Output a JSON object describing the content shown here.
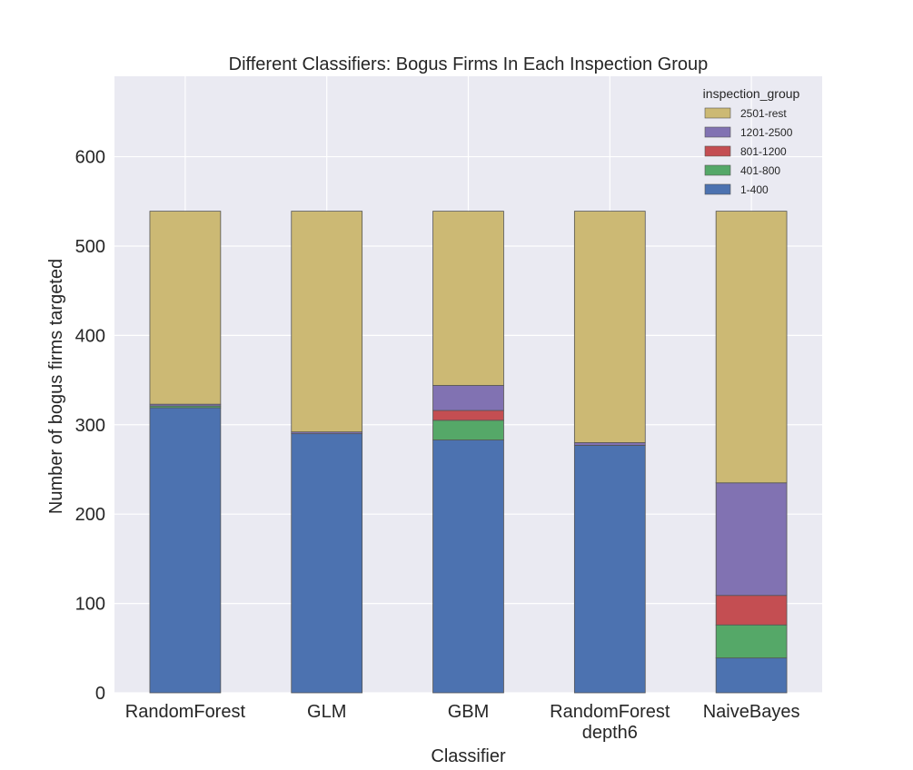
{
  "chart_data": {
    "type": "bar",
    "stacked": true,
    "title": "Different Classifiers: Bogus Firms In Each Inspection Group",
    "xlabel": "Classifier",
    "ylabel": "Number of bogus firms targeted",
    "categories": [
      [
        "RandomForest"
      ],
      [
        "GLM"
      ],
      [
        "GBM"
      ],
      [
        "RandomForest",
        "depth6"
      ],
      [
        "NaiveBayes"
      ]
    ],
    "ylim": [
      0,
      690
    ],
    "yticks": [
      0,
      100,
      200,
      300,
      400,
      500,
      600
    ],
    "grid": true,
    "legend": {
      "title": "inspection_group",
      "placement": "top-right"
    },
    "series": [
      {
        "name": "1-400",
        "color": "#4c72b0",
        "values": [
          319,
          290,
          283,
          277,
          39
        ]
      },
      {
        "name": "401-800",
        "color": "#55a868",
        "values": [
          2,
          0,
          22,
          0,
          37
        ]
      },
      {
        "name": "801-1200",
        "color": "#c44e52",
        "values": [
          0,
          0,
          11,
          0,
          33
        ]
      },
      {
        "name": "1201-2500",
        "color": "#8172b2",
        "values": [
          2,
          2,
          28,
          3,
          126
        ]
      },
      {
        "name": "2501-rest",
        "color": "#ccb974",
        "values": [
          216,
          247,
          195,
          259,
          304
        ]
      }
    ]
  },
  "colors": {
    "plot_background": "#eaeaf2",
    "grid": "#ffffff",
    "bar_edge": "#555555"
  }
}
